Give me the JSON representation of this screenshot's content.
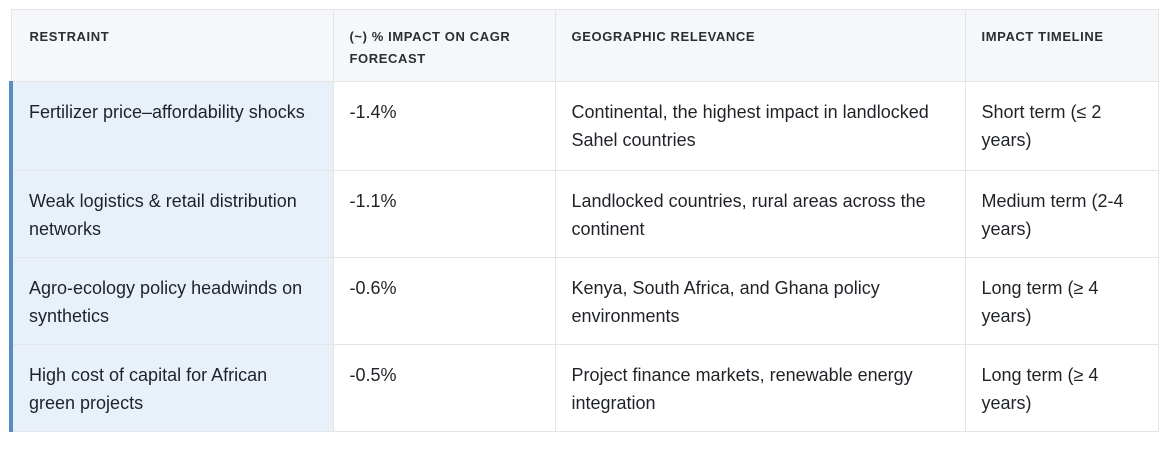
{
  "table": {
    "headers": [
      "RESTRAINT",
      "(~) % IMPACT ON CAGR FORECAST",
      "GEOGRAPHIC RELEVANCE",
      "IMPACT TIMELINE"
    ],
    "rows": [
      {
        "restraint": "Fertilizer price–affordability shocks",
        "impact": "-1.4%",
        "geography": "Continental, the highest impact in landlocked Sahel countries",
        "timeline": "Short term (≤ 2 years)"
      },
      {
        "restraint": "Weak logistics & retail distribution networks",
        "impact": "-1.1%",
        "geography": "Landlocked countries, rural areas across the continent",
        "timeline": "Medium term (2-4 years)"
      },
      {
        "restraint": "Agro-ecology policy headwinds on synthetics",
        "impact": "-0.6%",
        "geography": "Kenya, South Africa, and Ghana policy environments",
        "timeline": "Long term (≥ 4 years)"
      },
      {
        "restraint": "High cost of capital for African green projects",
        "impact": "-0.5%",
        "geography": "Project finance markets, renewable energy integration",
        "timeline": "Long term (≥ 4 years)"
      }
    ]
  },
  "colors": {
    "header_bg": "#f6f7f9",
    "first_col_bg": "#e8f1fa",
    "accent_bar": "#5a8cc4",
    "border": "#e3e5e8"
  }
}
